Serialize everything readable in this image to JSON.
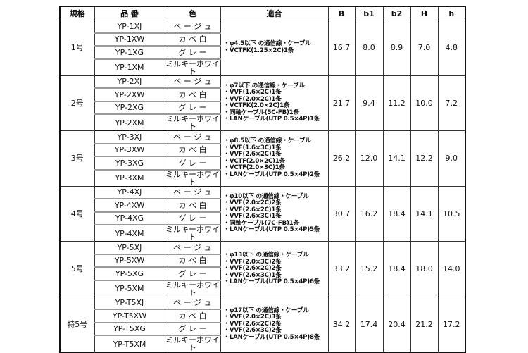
{
  "headers": [
    "規格",
    "品 番",
    "色",
    "適合",
    "B",
    "b1",
    "b2",
    "H",
    "h"
  ],
  "groups": [
    {
      "size": "1号",
      "items": [
        [
          "YP-1XJ",
          "ベ ー ジ ュ"
        ],
        [
          "YP-1XW",
          "カ ベ 白"
        ],
        [
          "YP-1XG",
          "グ レ ー"
        ],
        [
          "YP-1XM",
          "ミルキーホワイト"
        ]
      ],
      "fit": [
        "・φ4.5以下 の通信線・ケーブル",
        "・VCTFK(1.25×2C)1条"
      ],
      "B": "16.7",
      "b1": "8.0",
      "b2": "8.9",
      "H": "7.0",
      "h": "4.8"
    },
    {
      "size": "2号",
      "items": [
        [
          "YP-2XJ",
          "ベ ー ジ ュ"
        ],
        [
          "YP-2XW",
          "カ ベ 白"
        ],
        [
          "YP-2XG",
          "グ レ ー"
        ],
        [
          "YP-2XM",
          "ミルキーホワイト"
        ]
      ],
      "fit": [
        "・φ7以下 の通信線・ケーブル",
        "・VVF(1.6×2C)1条",
        "・VVF(2.0×2C)1条",
        "・VCTFK(2.0×2C)1条",
        "・同軸ケーブル(5C-FB)1条",
        "・LANケーブル(UTP 0.5×4P)1条"
      ],
      "B": "21.7",
      "b1": "9.4",
      "b2": "11.2",
      "H": "10.0",
      "h": "7.2"
    },
    {
      "size": "3号",
      "items": [
        [
          "YP-3XJ",
          "ベ ー ジ ュ"
        ],
        [
          "YP-3XW",
          "カ ベ 白"
        ],
        [
          "YP-3XG",
          "グ レ ー"
        ],
        [
          "YP-3XM",
          "ミルキーホワイト"
        ]
      ],
      "fit": [
        "・φ8.5以下 の通信線・ケーブル",
        "・VVF(1.6×3C)1条",
        "・VVF(2.6×2C)1条",
        "・VCTF(2.0×2C)1条",
        "・VCTF(2.0×3C)1条",
        "・LANケーブル(UTP 0.5×4P)2条"
      ],
      "B": "26.2",
      "b1": "12.0",
      "b2": "14.1",
      "H": "12.2",
      "h": "9.0"
    },
    {
      "size": "4号",
      "items": [
        [
          "YP-4XJ",
          "ベ ー ジ ュ"
        ],
        [
          "YP-4XW",
          "カ ベ 白"
        ],
        [
          "YP-4XG",
          "グ レ ー"
        ],
        [
          "YP-4XM",
          "ミルキーホワイト"
        ]
      ],
      "fit": [
        "・φ10以下 の通信線・ケーブル",
        "・VVF(2.0×2C)2条",
        "・VVF(2.6×2C)1条",
        "・VVF(2.6×3C)1条",
        "・同軸ケーブル(7C-FB)1条",
        "・LANケーブル(UTP 0.5×4P)5条"
      ],
      "B": "30.7",
      "b1": "16.2",
      "b2": "18.4",
      "H": "14.1",
      "h": "10.5"
    },
    {
      "size": "5号",
      "items": [
        [
          "YP-5XJ",
          "ベ ー ジ ュ"
        ],
        [
          "YP-5XW",
          "カ ベ 白"
        ],
        [
          "YP-5XG",
          "グ レ ー"
        ],
        [
          "YP-5XM",
          "ミルキーホワイト"
        ]
      ],
      "fit": [
        "・φ13以下 の通信線・ケーブル",
        "・VVF(2.0×3C)2条",
        "・VVF(2.6×2C)2条",
        "・VVF(2.6×3C)1条",
        "・LANケーブル(UTP 0.5×4P)6条"
      ],
      "B": "33.2",
      "b1": "15.2",
      "b2": "18.4",
      "H": "18.0",
      "h": "14.0"
    },
    {
      "size": "特5号",
      "items": [
        [
          "YP-T5XJ",
          "ベ ー ジ ュ"
        ],
        [
          "YP-T5XW",
          "カ ベ 白"
        ],
        [
          "YP-T5XG",
          "グ レ ー"
        ],
        [
          "YP-T5XM",
          "ミルキーホワイト"
        ]
      ],
      "fit": [
        "・φ17以下 の通信線・ケーブル",
        "・VVF(2.0×2C)3条",
        "・VVF(2.6×2C)2条",
        "・VVF(2.6×3C)2条",
        "・LANケーブル(UTP 0.5×4P)8条"
      ],
      "B": "34.2",
      "b1": "17.4",
      "b2": "20.4",
      "H": "21.2",
      "h": "17.2"
    }
  ]
}
